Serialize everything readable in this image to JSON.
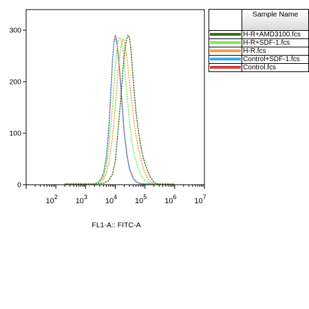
{
  "chart_data": {
    "type": "line",
    "title": "",
    "xlabel": "FL1-A:: FITC-A",
    "ylabel": "",
    "xscale": "log",
    "xlim": [
      10,
      10000000
    ],
    "ylim": [
      0,
      340
    ],
    "x_ticks": [
      {
        "base": "10",
        "exp": "2"
      },
      {
        "base": "10",
        "exp": "3"
      },
      {
        "base": "10",
        "exp": "4"
      },
      {
        "base": "10",
        "exp": "5"
      },
      {
        "base": "10",
        "exp": "6"
      },
      {
        "base": "10",
        "exp": "7"
      }
    ],
    "y_ticks": [
      "0",
      "100",
      "200",
      "300"
    ],
    "grid": false,
    "legend_position": "right",
    "legend_header": "Sample Name",
    "series": [
      {
        "name": "H-R+AMD3100.fcs",
        "color": "#3a6b1c",
        "x": [
          200,
          1000,
          2000,
          4000,
          6000,
          8000,
          10000,
          12000,
          15000,
          18000,
          21000,
          24000,
          27000,
          30000,
          33000,
          36000,
          40000,
          45000,
          50000,
          60000,
          70000,
          80000,
          100000,
          120000,
          150000,
          200000,
          250000,
          300000,
          400000,
          1000000
        ],
        "y": [
          0,
          0,
          1,
          3,
          8,
          20,
          45,
          95,
          160,
          220,
          262,
          283,
          290,
          285,
          268,
          240,
          205,
          170,
          140,
          105,
          80,
          62,
          40,
          28,
          15,
          5,
          2,
          1,
          0,
          0
        ]
      },
      {
        "name": "H-R+SDF-1.fcs",
        "color": "#7ee65a",
        "x": [
          200,
          1000,
          2000,
          3000,
          4000,
          5000,
          6000,
          8000,
          10000,
          12000,
          14000,
          16000,
          18000,
          20000,
          24000,
          30000,
          36000,
          45000,
          60000,
          80000,
          100000,
          150000,
          300000
        ],
        "y": [
          0,
          0,
          2,
          6,
          15,
          35,
          70,
          150,
          230,
          275,
          286,
          280,
          262,
          235,
          185,
          125,
          85,
          55,
          30,
          15,
          8,
          3,
          0
        ]
      },
      {
        "name": "H-R.fcs",
        "color": "#f0a050",
        "x": [
          200,
          1000,
          2000,
          3000,
          4000,
          5000,
          6000,
          8000,
          10000,
          12000,
          14000,
          16000,
          18000,
          20000,
          23000,
          26000,
          30000,
          35000,
          40000,
          50000,
          60000,
          80000,
          100000,
          130000,
          160000,
          200000,
          300000
        ],
        "y": [
          0,
          0,
          1,
          4,
          10,
          22,
          40,
          90,
          150,
          210,
          250,
          272,
          283,
          280,
          260,
          235,
          200,
          165,
          135,
          95,
          70,
          40,
          22,
          10,
          5,
          2,
          0
        ]
      },
      {
        "name": "Control+SDF-1.fcs",
        "color": "#33aaee",
        "x": [
          200,
          1000,
          2000,
          3000,
          4000,
          5000,
          6000,
          7000,
          8000,
          9000,
          10000,
          11000,
          12000,
          14000,
          16000,
          18000,
          20000,
          25000,
          30000,
          40000,
          50000,
          70000,
          100000,
          200000
        ],
        "y": [
          0,
          0,
          2,
          8,
          22,
          55,
          110,
          180,
          240,
          275,
          284,
          278,
          262,
          220,
          175,
          135,
          100,
          55,
          30,
          12,
          6,
          2,
          1,
          0
        ]
      },
      {
        "name": "Control.fcs",
        "color": "#d43c3c",
        "x": [
          200,
          1000,
          2000,
          3000,
          4000,
          5000,
          6000,
          7000,
          8000,
          9000,
          10000,
          11000,
          12000,
          14000,
          16000,
          18000,
          20000,
          25000,
          30000,
          40000,
          50000,
          70000,
          100000,
          200000
        ],
        "y": [
          0,
          0,
          2,
          7,
          20,
          50,
          100,
          170,
          235,
          278,
          290,
          283,
          265,
          222,
          178,
          138,
          102,
          56,
          32,
          13,
          6,
          2,
          1,
          0
        ]
      }
    ]
  }
}
